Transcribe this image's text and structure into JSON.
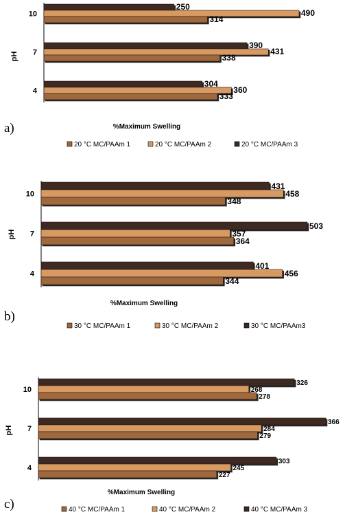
{
  "colors": {
    "series1": "#A0683C",
    "series2": "#D89A64",
    "series3": "#3C2A22"
  },
  "chart_data": [
    {
      "type": "bar",
      "orientation": "horizontal",
      "panel_label": "a)",
      "categories": [
        "10",
        "7",
        "4"
      ],
      "series": [
        {
          "name": "20 °C MC/PAAm 1",
          "values": [
            314,
            338,
            333
          ]
        },
        {
          "name": "20 °C MC/PAAm 2",
          "values": [
            490,
            431,
            360
          ]
        },
        {
          "name": "20 °C MC/PAAm 3",
          "values": [
            250,
            390,
            304
          ]
        }
      ],
      "xlabel": "%Maximum Swelling",
      "ylabel": "pH",
      "legend": "bottom"
    },
    {
      "type": "bar",
      "orientation": "horizontal",
      "panel_label": "b)",
      "categories": [
        "10",
        "7",
        "4"
      ],
      "series": [
        {
          "name": "30 °C MC/PAAm 1",
          "values": [
            348,
            364,
            344
          ]
        },
        {
          "name": "30 °C MC/PAAm 2",
          "values": [
            458,
            357,
            456
          ]
        },
        {
          "name": "30 °C MC/PAAm3",
          "values": [
            431,
            503,
            401
          ]
        }
      ],
      "xlabel": "%Maximum Swelling",
      "ylabel": "pH",
      "legend": "bottom"
    },
    {
      "type": "bar",
      "orientation": "horizontal",
      "panel_label": "c)",
      "categories": [
        "10",
        "7",
        "4"
      ],
      "series": [
        {
          "name": "40 °C MC/PAAm 1",
          "values": [
            278,
            279,
            227
          ]
        },
        {
          "name": "40 °C MC/PAAm 2",
          "values": [
            268,
            284,
            245
          ]
        },
        {
          "name": "40  °C MC/PAAm 3",
          "values": [
            326,
            366,
            303
          ]
        }
      ],
      "xlabel": "%Maximum Swelling",
      "ylabel": "pH",
      "legend": "bottom"
    }
  ]
}
